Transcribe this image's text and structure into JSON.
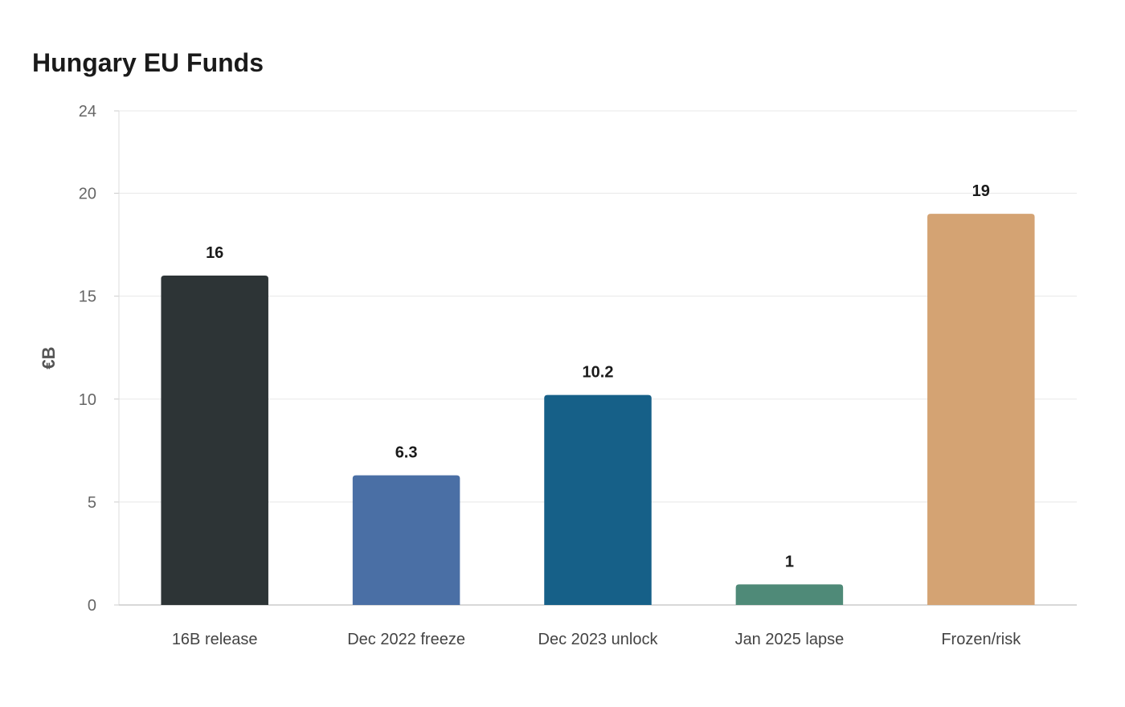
{
  "chart_data": {
    "type": "bar",
    "title": "Hungary EU Funds",
    "xlabel": "",
    "ylabel": "€B",
    "ylim": [
      0,
      24
    ],
    "yticks": [
      0,
      5,
      10,
      15,
      20,
      24
    ],
    "grid": true,
    "legend": "none",
    "categories": [
      "16B release",
      "Dec 2022 freeze",
      "Dec 2023 unlock",
      "Jan 2025 lapse",
      "Frozen/risk"
    ],
    "values": [
      16,
      6.3,
      10.2,
      1,
      19
    ],
    "data_labels": [
      "16",
      "6.3",
      "10.2",
      "1",
      "19"
    ],
    "colors": [
      "#2d3436",
      "#4a6fa5",
      "#166088",
      "#4f8a78",
      "#d4a373"
    ]
  }
}
